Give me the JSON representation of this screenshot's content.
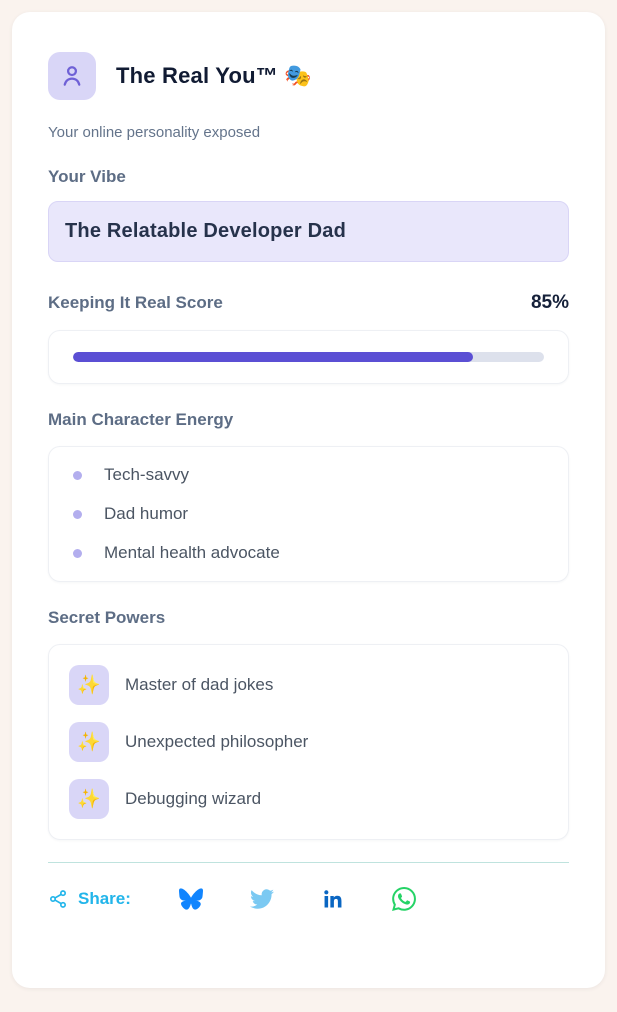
{
  "colors": {
    "page-bg": "#faf3ee",
    "card-bg": "#ffffff",
    "accent": "#5b4fd4",
    "lavender-tile": "#d9d6f7",
    "lavender-box-bg": "#e9e7fb",
    "lavender-box-border": "#d9d5f6",
    "heading": "#5d6d85",
    "title": "#111b33",
    "body-text": "#4b5563",
    "dot": "#b3aeee",
    "track": "#dde1ec",
    "divider": "#bfe3de",
    "person-icon": "#6f61d6",
    "share": "#22b5ea",
    "bluesky": "#1185fe",
    "twitter": "#7bc9f2",
    "linkedin": "#0a66c2",
    "whatsapp": "#25d366"
  },
  "header": {
    "title": "The Real You™ 🎭",
    "subtitle": "Your online personality exposed"
  },
  "vibe": {
    "label": "Your Vibe",
    "value": "The Relatable Developer Dad"
  },
  "score": {
    "label": "Keeping It Real Score",
    "value": "85%",
    "percent": 85
  },
  "traits": {
    "label": "Main Character Energy",
    "items": [
      "Tech-savvy",
      "Dad humor",
      "Mental health advocate"
    ]
  },
  "powers": {
    "label": "Secret Powers",
    "icon": "✨",
    "items": [
      "Master of dad jokes",
      "Unexpected philosopher",
      "Debugging wizard"
    ]
  },
  "share": {
    "label": "Share:",
    "networks": [
      "bluesky",
      "twitter",
      "linkedin",
      "whatsapp"
    ]
  }
}
